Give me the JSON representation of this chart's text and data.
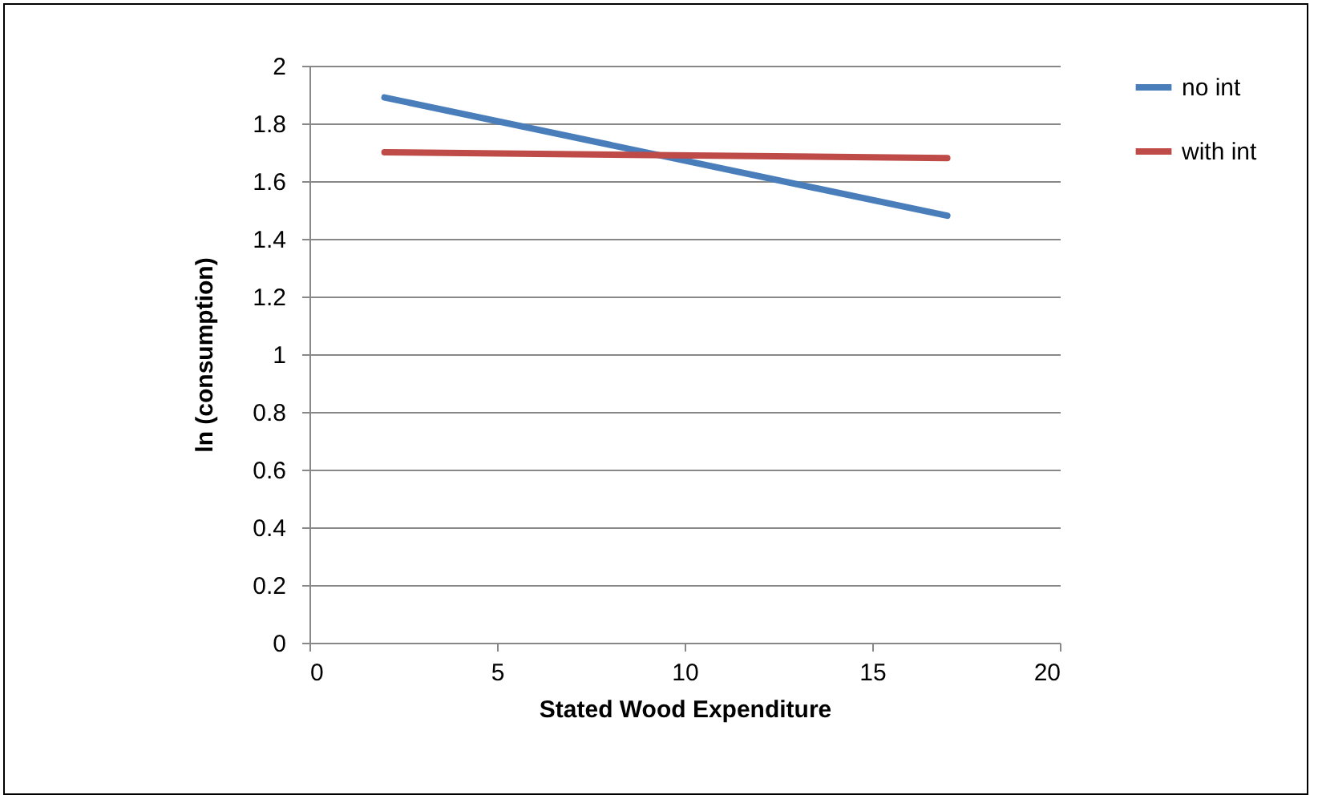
{
  "chart_data": {
    "type": "line",
    "xlabel": "Stated Wood Expenditure",
    "ylabel": "ln (consumption)",
    "x": [
      2,
      17
    ],
    "series": [
      {
        "name": "no int",
        "color": "#4a7ebb",
        "values": [
          1.89,
          1.48
        ]
      },
      {
        "name": "with int",
        "color": "#be4b48",
        "values": [
          1.7,
          1.68
        ]
      }
    ],
    "xlim": [
      0,
      20
    ],
    "xticks": [
      0,
      5,
      10,
      15,
      20
    ],
    "ylim": [
      0,
      2
    ],
    "yticks": [
      0,
      0.2,
      0.4,
      0.6,
      0.8,
      1,
      1.2,
      1.4,
      1.6,
      1.8,
      2
    ],
    "grid": "y",
    "legend": "right",
    "marker": "none",
    "line_style": "solid"
  }
}
